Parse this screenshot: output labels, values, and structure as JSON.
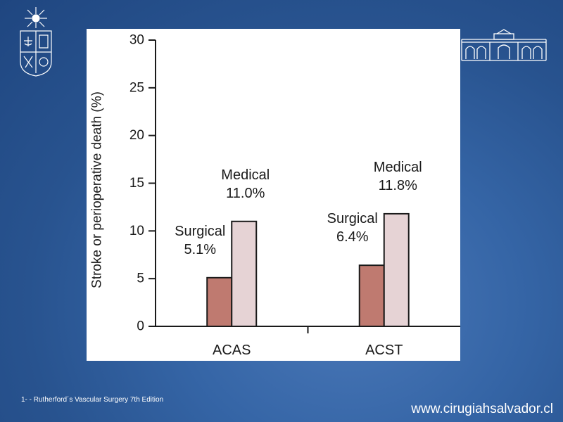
{
  "chart_data": {
    "type": "bar",
    "categories": [
      "ACAS",
      "ACST"
    ],
    "series": [
      {
        "name": "Surgical",
        "values": [
          5.1,
          6.4
        ],
        "labels": [
          "5.1%",
          "6.4%"
        ],
        "color": "#bf7a70"
      },
      {
        "name": "Medical",
        "values": [
          11.0,
          11.8
        ],
        "labels": [
          "11.0%",
          "11.8%"
        ],
        "color": "#e6d3d5"
      }
    ],
    "ylabel": "Stroke or perioperative death (%)",
    "xlabel": "",
    "ylim": [
      0,
      30
    ],
    "yticks": [
      0,
      5,
      10,
      15,
      20,
      25,
      30
    ],
    "grid": false,
    "legend": "none"
  },
  "footer": {
    "citation": "1- - Rutherford´s  Vascular Surgery 7th Edition",
    "website": "www.cirugiahsalvador.cl"
  },
  "logos": {
    "left": "university-crest-icon",
    "right": "hospital-building-icon"
  }
}
